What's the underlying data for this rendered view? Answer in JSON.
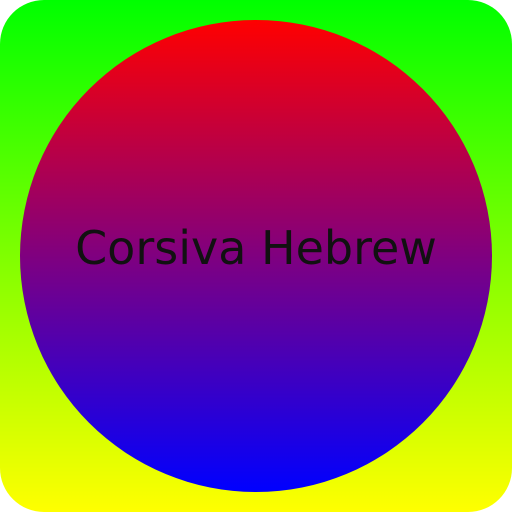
{
  "icon": {
    "label": "Corsiva Hebrew",
    "colors": {
      "background_top": "#00ff00",
      "background_bottom": "#ffff00",
      "circle_top": "#ff0000",
      "circle_bottom": "#0000ff",
      "text": "#111111"
    }
  }
}
